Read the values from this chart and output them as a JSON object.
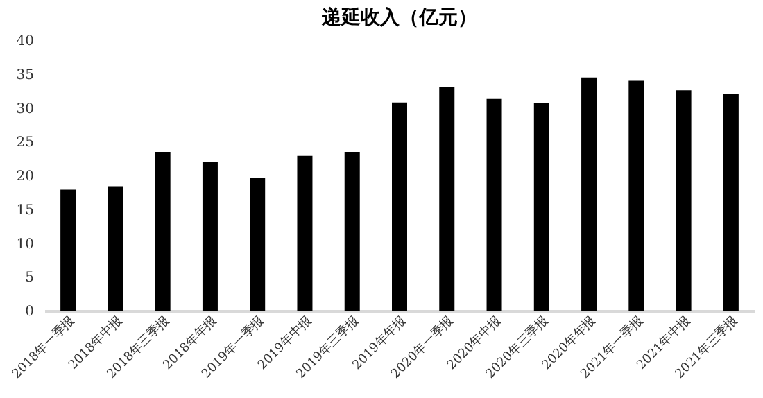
{
  "chart_data": {
    "type": "bar",
    "title": "递延收入（亿元）",
    "categories": [
      "2018年一季报",
      "2018年中报",
      "2018年三季报",
      "2018年年报",
      "2019年一季报",
      "2019年中报",
      "2019年三季报",
      "2019年年报",
      "2020年一季报",
      "2020年中报",
      "2020年三季报",
      "2020年年报",
      "2021年一季报",
      "2021年中报",
      "2021年三季报"
    ],
    "values": [
      17.9,
      18.4,
      23.5,
      22.0,
      19.6,
      22.9,
      23.5,
      30.8,
      33.1,
      31.3,
      30.7,
      34.5,
      34.0,
      32.6,
      32.0
    ],
    "color": "#000000",
    "ylim": [
      0,
      40
    ],
    "yticks": [
      0,
      5,
      10,
      15,
      20,
      25,
      30,
      35,
      40
    ],
    "grid": false
  }
}
